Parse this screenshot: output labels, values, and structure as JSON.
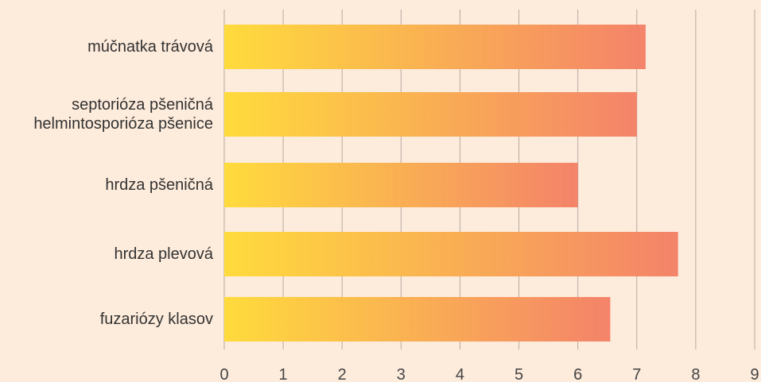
{
  "chart_data": {
    "type": "bar",
    "orientation": "horizontal",
    "categories": [
      "múčnatka trávová",
      "septorióza pšeničná helmintosporióza pšenice",
      "hrdza pšeničná",
      "hrdza plevová",
      "fuzariózy klasov"
    ],
    "values": [
      7.15,
      7.0,
      6.0,
      7.7,
      6.55
    ],
    "color": [
      "#ffdb3c",
      "#f4836a"
    ],
    "xlim": [
      0,
      9
    ],
    "xticks": [
      0,
      1,
      2,
      3,
      4,
      5,
      6,
      7,
      8,
      9
    ],
    "grid": true
  }
}
